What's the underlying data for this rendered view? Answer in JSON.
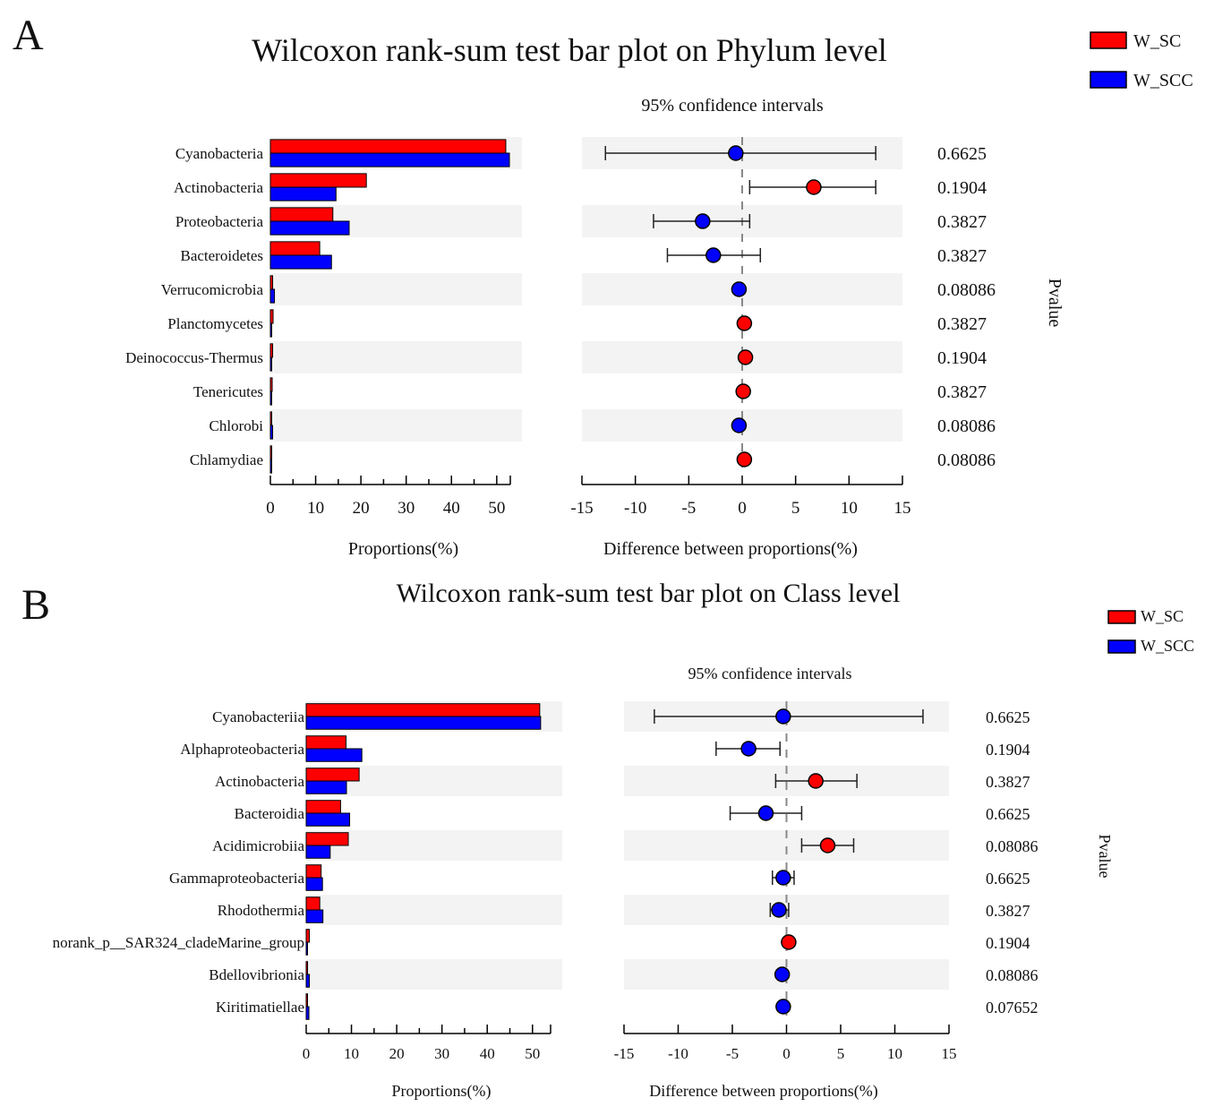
{
  "colors": {
    "sc": "#ff0000",
    "scc": "#0000ff",
    "band": "#f3f3f3",
    "dash": "#888888"
  },
  "legend": {
    "a": "W_SC",
    "b": "W_SCC"
  },
  "chart_data": [
    {
      "panel": "A",
      "type": "bar",
      "title": "Wilcoxon rank-sum test bar plot on Phylum level",
      "ci_title": "95% confidence intervals",
      "xlabel": "Proportions(%)",
      "diff_xlabel": "Difference between proportions(%)",
      "pvalue_label": "Pvalue",
      "xlim": [
        0,
        53
      ],
      "xticks": [
        "0",
        "10",
        "20",
        "30",
        "40",
        "50"
      ],
      "diff_xlim": [
        -15,
        15
      ],
      "diff_xticks": [
        "-15",
        "-10",
        "-5",
        "0",
        "5",
        "10",
        "15"
      ],
      "categories": [
        "Cyanobacteria",
        "Actinobacteria",
        "Proteobacteria",
        "Bacteroidetes",
        "Verrucomicrobia",
        "Planctomycetes",
        "Deinococcus-Thermus",
        "Tenericutes",
        "Chlorobi",
        "Chlamydiae"
      ],
      "series": [
        {
          "name": "W_SC",
          "values": [
            52.0,
            21.2,
            13.8,
            10.9,
            0.5,
            0.6,
            0.5,
            0.4,
            0.3,
            0.3
          ]
        },
        {
          "name": "W_SCC",
          "values": [
            52.8,
            14.5,
            17.4,
            13.5,
            0.9,
            0.3,
            0.3,
            0.2,
            0.5,
            0.2
          ]
        }
      ],
      "difference": [
        -0.6,
        6.7,
        -3.7,
        -2.7,
        -0.3,
        0.2,
        0.3,
        0.1,
        -0.3,
        0.2
      ],
      "ci_low": [
        -12.8,
        0.7,
        -8.3,
        -7.0,
        -0.5,
        0.0,
        0.1,
        0.0,
        -0.4,
        0.1
      ],
      "ci_high": [
        12.5,
        12.5,
        0.7,
        1.7,
        -0.1,
        0.4,
        0.5,
        0.2,
        -0.1,
        0.3
      ],
      "pvalues": [
        "0.6625",
        "0.1904",
        "0.3827",
        "0.3827",
        "0.08086",
        "0.3827",
        "0.1904",
        "0.3827",
        "0.08086",
        "0.08086"
      ]
    },
    {
      "panel": "B",
      "type": "bar",
      "title": "Wilcoxon rank-sum test bar plot on Class level",
      "ci_title": "95% confidence intervals",
      "xlabel": "Proportions(%)",
      "diff_xlabel": "Difference between proportions(%)",
      "pvalue_label": "Pvalue",
      "xlim": [
        0,
        54
      ],
      "xticks": [
        "0",
        "10",
        "20",
        "30",
        "40",
        "50"
      ],
      "diff_xlim": [
        -15,
        15
      ],
      "diff_xticks": [
        "-15",
        "-10",
        "-5",
        "0",
        "5",
        "10",
        "15"
      ],
      "categories": [
        "Cyanobacteriia",
        "Alphaproteobacteria",
        "Actinobacteria",
        "Bacteroidia",
        "Acidimicrobiia",
        "Gammaproteobacteria",
        "Rhodothermia",
        "norank_p__SAR324_cladeMarine_group",
        "Bdellovibrionia",
        "Kiritimatiellae"
      ],
      "series": [
        {
          "name": "W_SC",
          "values": [
            51.6,
            8.8,
            11.7,
            7.6,
            9.3,
            3.3,
            3.0,
            0.7,
            0.3,
            0.2
          ]
        },
        {
          "name": "W_SCC",
          "values": [
            51.8,
            12.3,
            8.9,
            9.6,
            5.3,
            3.6,
            3.7,
            0.3,
            0.7,
            0.6
          ]
        }
      ],
      "difference": [
        -0.3,
        -3.5,
        2.7,
        -1.9,
        3.8,
        -0.3,
        -0.7,
        0.2,
        -0.4,
        -0.3
      ],
      "ci_low": [
        -12.2,
        -6.5,
        -1.0,
        -5.2,
        1.4,
        -1.3,
        -1.5,
        0.1,
        -0.5,
        -0.4
      ],
      "ci_high": [
        12.6,
        -0.6,
        6.5,
        1.4,
        6.2,
        0.7,
        0.2,
        0.4,
        -0.2,
        -0.1
      ],
      "pvalues": [
        "0.6625",
        "0.1904",
        "0.3827",
        "0.6625",
        "0.08086",
        "0.6625",
        "0.3827",
        "0.1904",
        "0.08086",
        "0.07652"
      ]
    }
  ]
}
